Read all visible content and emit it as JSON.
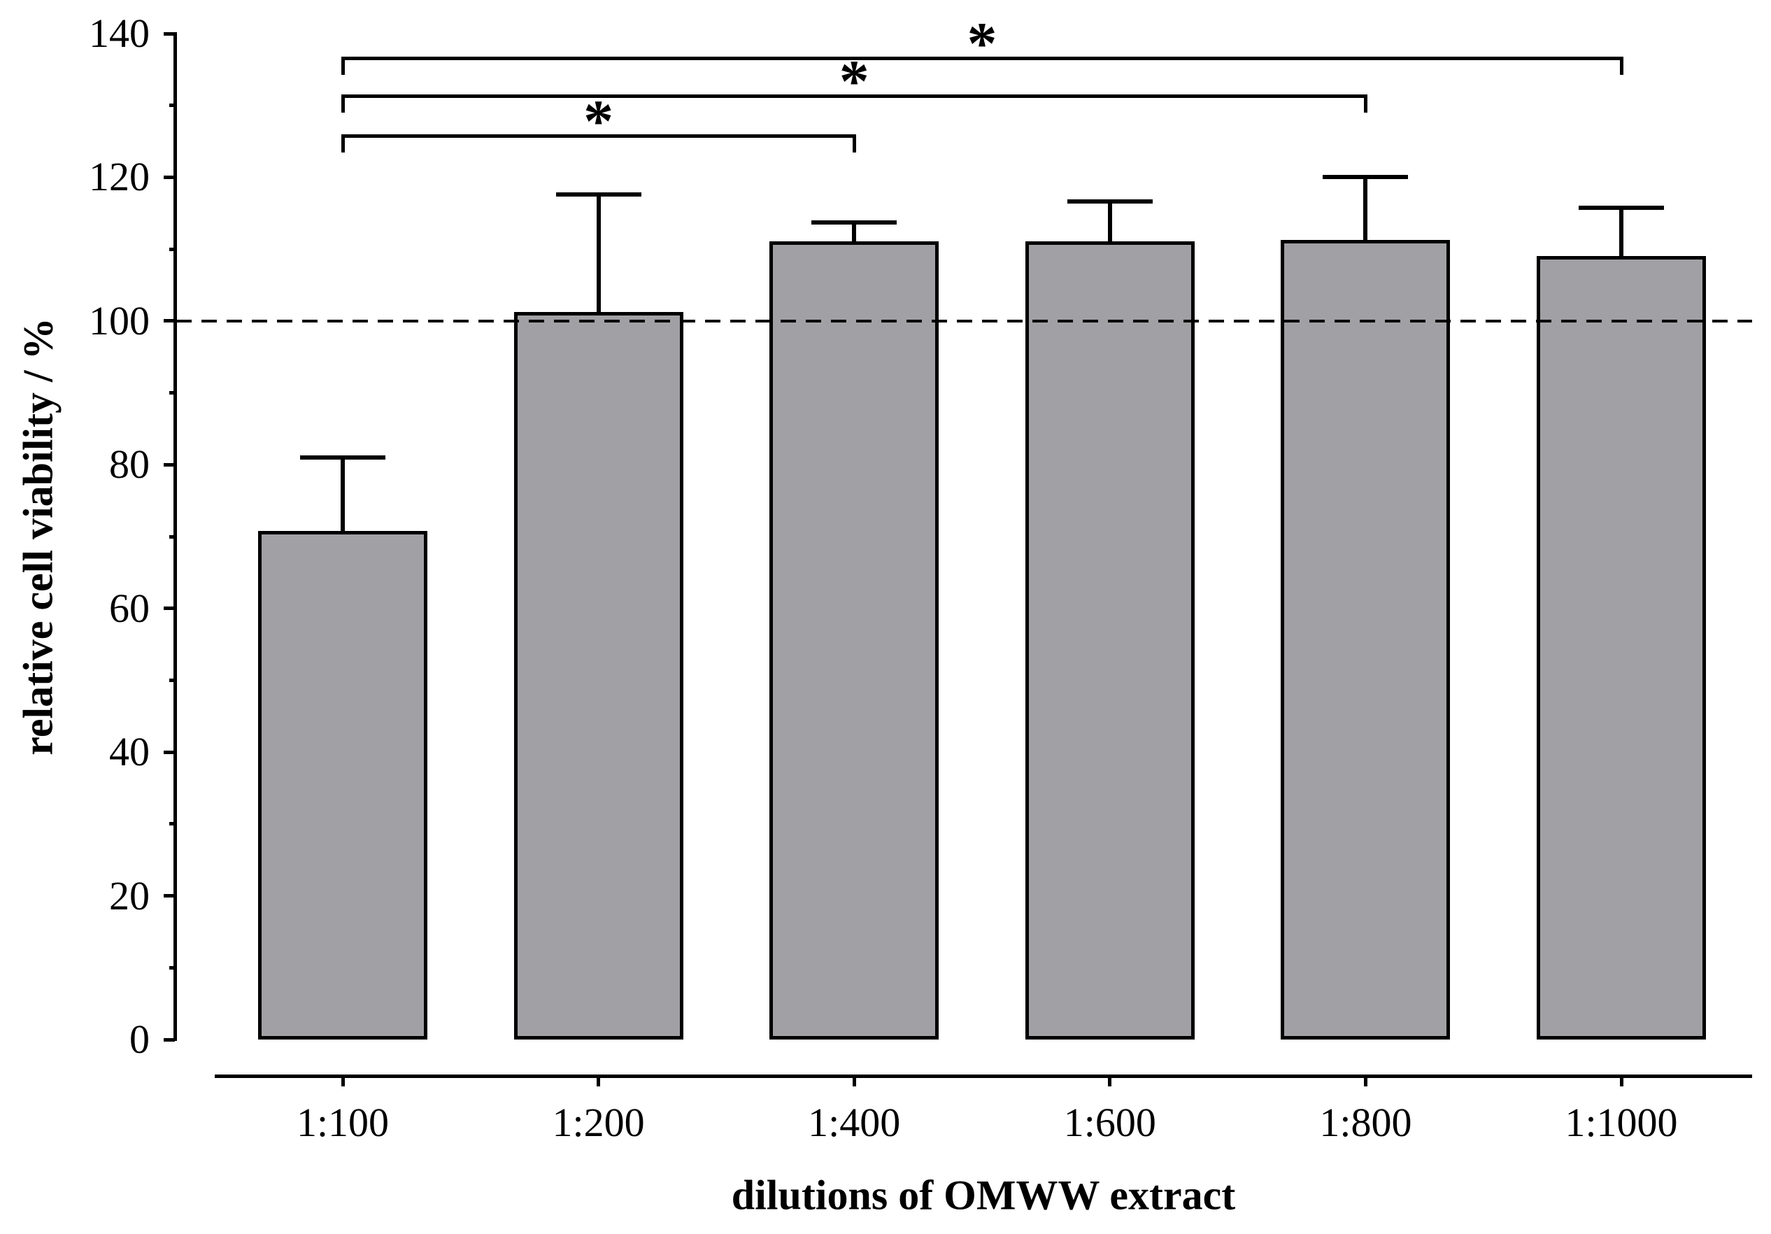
{
  "chart_data": {
    "type": "bar",
    "title": "",
    "xlabel": "dilutions of OMWW extract",
    "ylabel": "relative cell viability / %",
    "categories": [
      "1:100",
      "1:200",
      "1:400",
      "1:600",
      "1:800",
      "1:1000"
    ],
    "series": [
      {
        "name": "relative cell viability",
        "values": [
          70.8,
          101.3,
          111.1,
          111.1,
          111.3,
          109.0
        ],
        "errors_plus": [
          10.2,
          16.3,
          2.6,
          5.5,
          8.7,
          6.8
        ]
      }
    ],
    "ylim": [
      0,
      140
    ],
    "y_ticks": [
      0,
      20,
      40,
      60,
      80,
      100,
      120,
      140
    ],
    "y_minor_step": 10,
    "reference_line_y": 100,
    "reference_line_style": "dashed",
    "bar_fill_color": "#a1a1a5",
    "bar_border_color": "#000000",
    "axis_color": "#000000",
    "grid": "off",
    "legend": null,
    "significance_brackets": [
      {
        "from_category": "1:100",
        "to_category": "1:400",
        "label": "*",
        "y": 126.0
      },
      {
        "from_category": "1:100",
        "to_category": "1:800",
        "label": "*",
        "y": 131.5
      },
      {
        "from_category": "1:100",
        "to_category": "1:1000",
        "label": "*",
        "y": 136.8
      }
    ]
  }
}
